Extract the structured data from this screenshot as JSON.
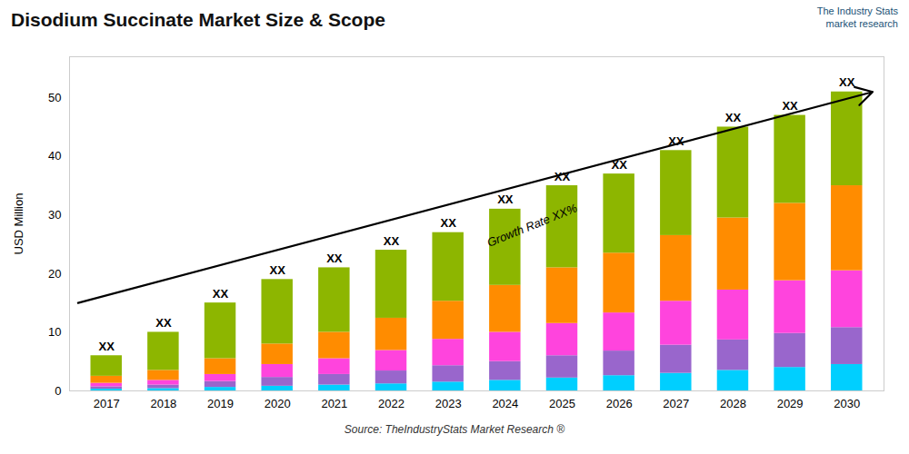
{
  "chart_data": {
    "type": "bar",
    "stacked": true,
    "title": "Disodium Succinate Market Size & Scope",
    "ylabel": "USD Million",
    "caption": "Source: TheIndustryStats Market Research ®",
    "logo": "The Industry Stats\nmarket research",
    "categories": [
      "2017",
      "2018",
      "2019",
      "2020",
      "2021",
      "2022",
      "2023",
      "2024",
      "2025",
      "2026",
      "2027",
      "2028",
      "2029",
      "2030"
    ],
    "series": [
      {
        "color": "#00CFFF",
        "values": [
          0.3,
          0.4,
          0.6,
          0.8,
          1.0,
          1.2,
          1.5,
          1.8,
          2.2,
          2.6,
          3.0,
          3.5,
          4.0,
          4.5
        ]
      },
      {
        "color": "#9966CC",
        "values": [
          0.4,
          0.6,
          1.0,
          1.5,
          1.8,
          2.2,
          2.8,
          3.2,
          3.8,
          4.2,
          4.8,
          5.2,
          5.8,
          6.3
        ]
      },
      {
        "color": "#FF44DD",
        "values": [
          0.6,
          0.8,
          1.2,
          2.2,
          2.7,
          3.5,
          4.5,
          5.0,
          5.5,
          6.5,
          7.5,
          8.5,
          9.0,
          9.7
        ]
      },
      {
        "color": "#FF8C00",
        "values": [
          1.2,
          1.7,
          2.7,
          3.5,
          4.5,
          5.5,
          6.5,
          8.0,
          9.5,
          10.2,
          11.2,
          12.3,
          13.2,
          14.5
        ]
      },
      {
        "color": "#8DB600",
        "values": [
          3.5,
          6.5,
          9.5,
          11.0,
          11.0,
          11.6,
          11.7,
          13.0,
          14.0,
          13.5,
          14.5,
          15.5,
          15.0,
          16.0
        ]
      }
    ],
    "annotations": [
      {
        "text": "XX",
        "x": "2017",
        "y": 6
      },
      {
        "text": "XX",
        "x": "2018",
        "y": 10
      },
      {
        "text": "XX",
        "x": "2019",
        "y": 15
      },
      {
        "text": "XX",
        "x": "2020",
        "y": 19
      },
      {
        "text": "XX",
        "x": "2021",
        "y": 21
      },
      {
        "text": "XX",
        "x": "2022",
        "y": 24
      },
      {
        "text": "XX",
        "x": "2023",
        "y": 27
      },
      {
        "text": "XX",
        "x": "2024",
        "y": 31
      },
      {
        "text": "XX",
        "x": "2025",
        "y": 35
      },
      {
        "text": "XX",
        "x": "2026",
        "y": 37
      },
      {
        "text": "XX",
        "x": "2027",
        "y": 41
      },
      {
        "text": "XX",
        "x": "2028",
        "y": 45
      },
      {
        "text": "XX",
        "x": "2029",
        "y": 47
      },
      {
        "text": "XX",
        "x": "2030",
        "y": 51
      }
    ],
    "growth_label": {
      "text": "Growth Rate XX%",
      "y": 27
    },
    "arrow": {
      "y_start": 15,
      "y_end": 51
    },
    "ylim": [
      0,
      57
    ],
    "yticks": [
      0,
      10,
      20,
      30,
      40,
      50
    ],
    "grid": false
  }
}
